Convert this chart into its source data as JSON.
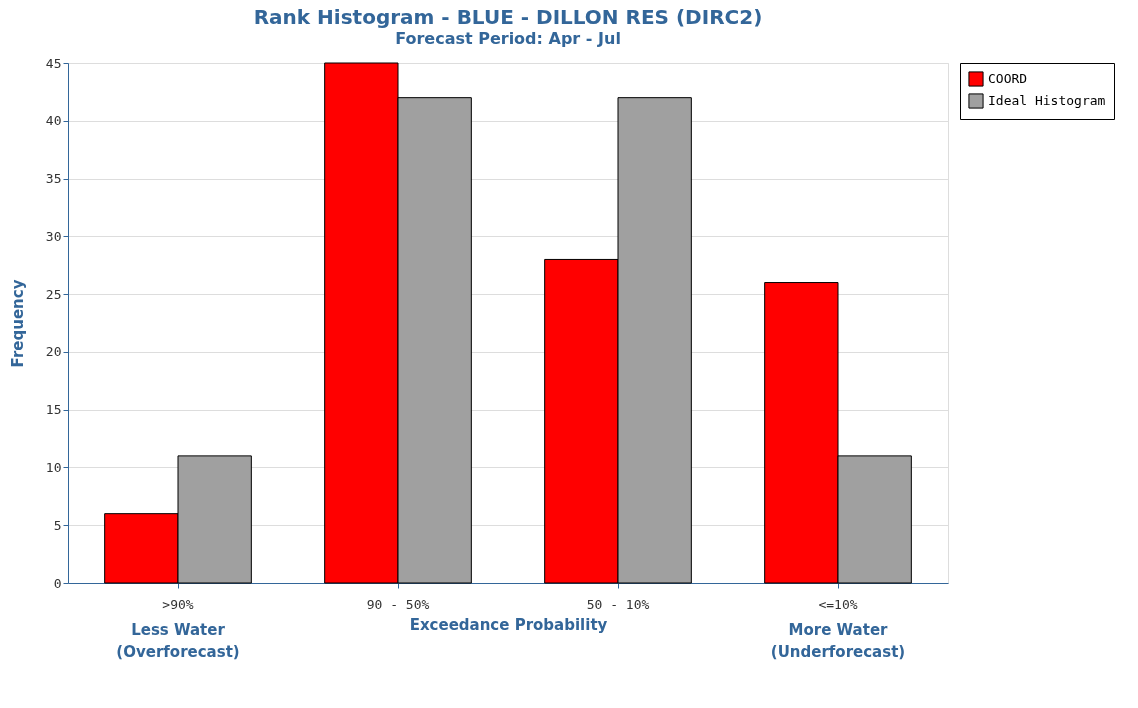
{
  "chart_data": {
    "type": "bar",
    "title": "Rank Histogram - BLUE - DILLON RES (DIRC2)",
    "subtitle": "Forecast Period: Apr - Jul",
    "xlabel": "Exceedance Probability",
    "ylabel": "Frequency",
    "categories": [
      ">90%",
      "90 - 50%",
      "50 - 10%",
      "<=10%"
    ],
    "series": [
      {
        "name": "COORD",
        "color": "#ff0000",
        "values": [
          6,
          45,
          28,
          26
        ]
      },
      {
        "name": "Ideal Histogram",
        "color": "#a0a0a0",
        "values": [
          11,
          42,
          42,
          11
        ]
      }
    ],
    "ylim": [
      0,
      45
    ],
    "yticks": [
      0,
      5,
      10,
      15,
      20,
      25,
      30,
      35,
      40,
      45
    ],
    "grid": "y",
    "legend": "top right",
    "annotations": [
      "Less Water\n(Overforecast)",
      "More Water\n(Underforecast)"
    ]
  }
}
